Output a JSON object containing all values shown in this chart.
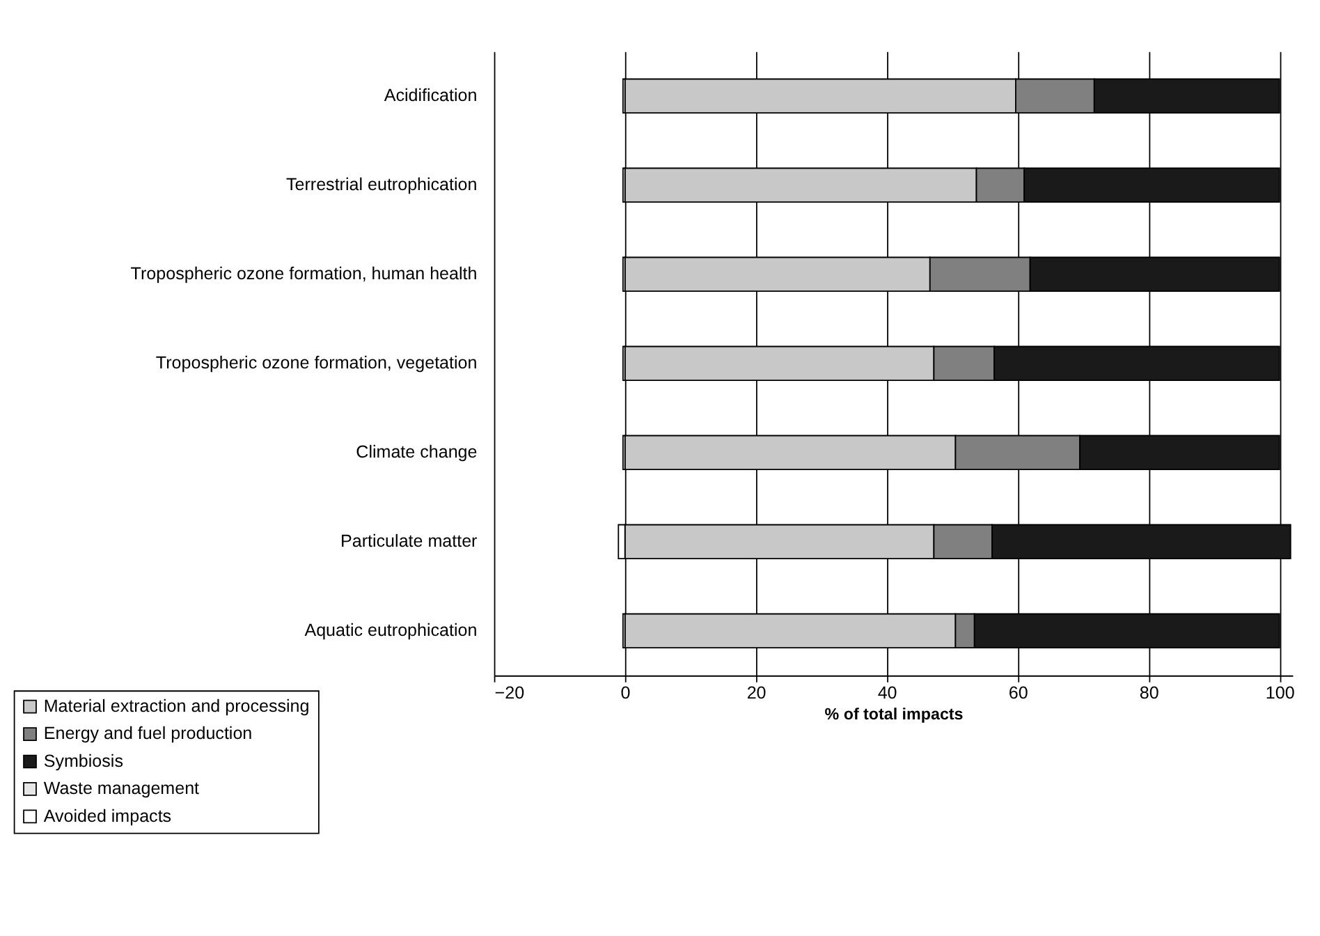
{
  "chart_data": {
    "type": "bar",
    "orientation": "horizontal",
    "stacked": true,
    "xlabel": "% of total impacts",
    "categories": [
      "Acidification",
      "Terrestrial eutrophication",
      "Tropospheric ozone formation, human health",
      "Tropospheric ozone formation, vegetation",
      "Climate change",
      "Particulate matter",
      "Aquatic eutrophication"
    ],
    "series": [
      {
        "name": "Material extraction and processing",
        "color": "#c8c8c8",
        "values": [
          59.7,
          53.7,
          46.6,
          47.2,
          50.5,
          47.2,
          50.5
        ]
      },
      {
        "name": "Energy and fuel production",
        "color": "#808080",
        "values": [
          12.0,
          7.3,
          15.3,
          9.2,
          19.0,
          8.9,
          2.9
        ]
      },
      {
        "name": "Symbiosis",
        "color": "#1a1a1a",
        "values": [
          28.3,
          39.0,
          38.1,
          43.6,
          30.5,
          45.6,
          46.6
        ]
      },
      {
        "name": "Waste management",
        "color": "#e6e6e6",
        "values": [
          null,
          null,
          null,
          null,
          null,
          null,
          null
        ]
      },
      {
        "name": "Avoided impacts",
        "color": "#ffffff",
        "values": [
          -0.3,
          -0.3,
          -0.3,
          -0.3,
          -0.3,
          -1.0,
          -0.3
        ]
      }
    ],
    "xlim": [
      -20,
      102
    ],
    "xticks": [
      -20,
      0,
      20,
      40,
      60,
      80,
      100
    ],
    "grid": "x",
    "legend": "bottom left"
  }
}
